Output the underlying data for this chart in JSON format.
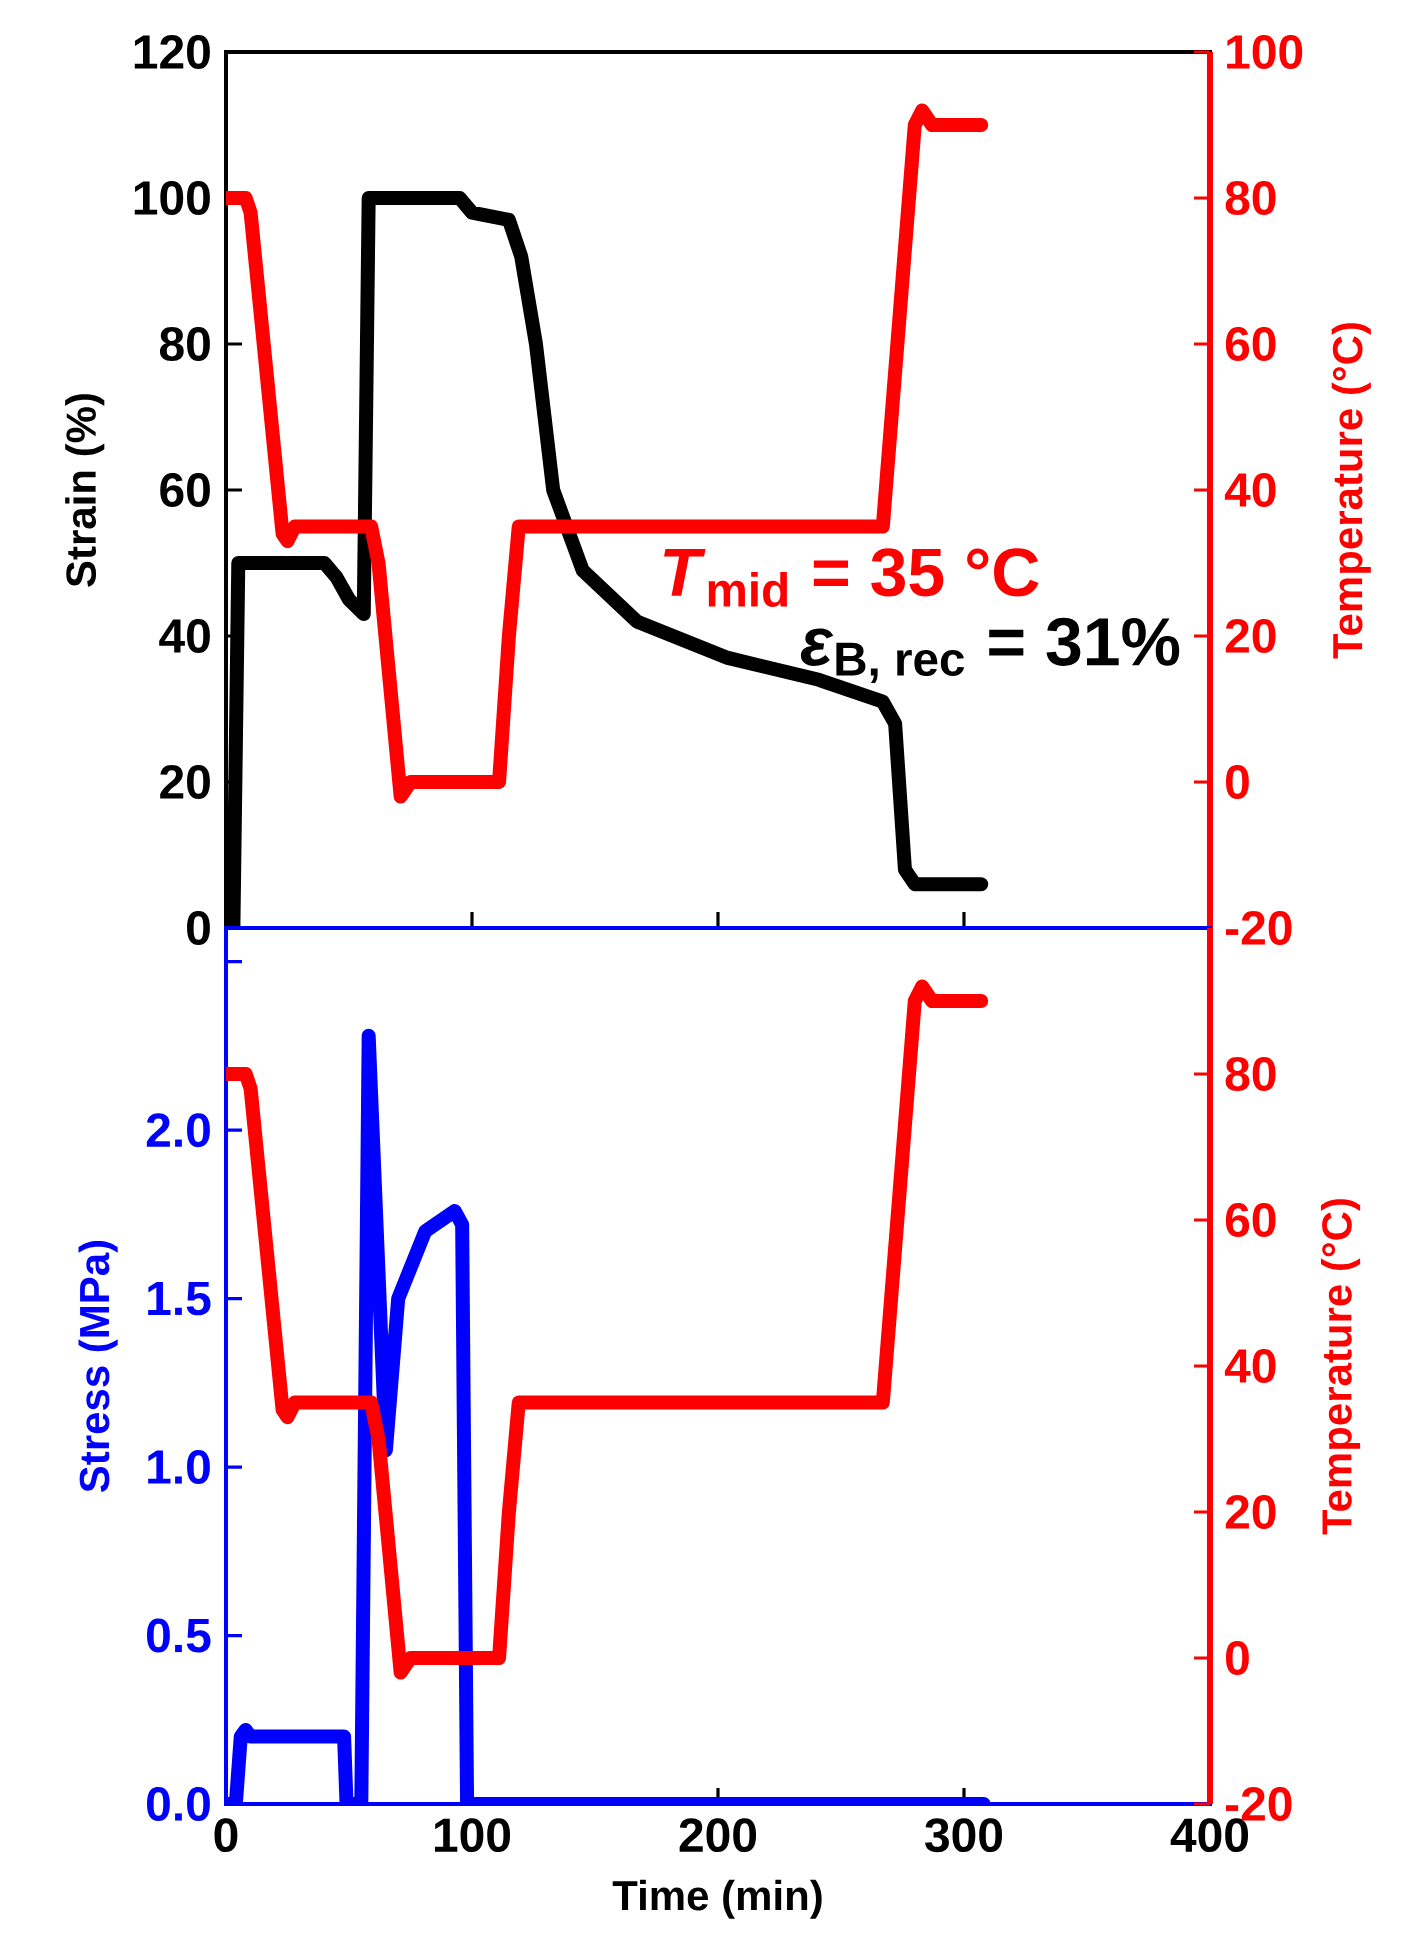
{
  "chart_data": [
    {
      "type": "line",
      "ylabel": "Strain (%)",
      "y2label": "Temperature (°C)",
      "xlim": [
        0,
        400
      ],
      "xticks": [
        0,
        100,
        200,
        300,
        400
      ],
      "ylim": [
        0,
        120
      ],
      "yticks": [
        0,
        20,
        40,
        60,
        80,
        100,
        120
      ],
      "y2lim": [
        -20,
        100
      ],
      "y2ticks": [
        -20,
        0,
        20,
        40,
        60,
        80,
        100
      ],
      "tick_labels": "y",
      "annotations": [
        "*T*$_{mid}$ = 35 °C",
        "\\text{\\textit{ε}}_{\\text{B, rec}}\\text{ = 31\\%}"
      ],
      "series": [
        {
          "color": "#000000",
          "x": [
            0,
            3,
            5,
            10,
            40,
            45,
            50,
            56,
            58,
            60,
            95,
            100,
            115,
            120,
            126,
            133,
            145,
            167,
            204,
            241,
            267,
            272,
            276,
            280,
            307
          ],
          "values": [
            0,
            0,
            50,
            50,
            50,
            48,
            45,
            43,
            100,
            100,
            100,
            98,
            97,
            92,
            80,
            60,
            49,
            42,
            37,
            34,
            31,
            28,
            8,
            6,
            6
          ]
        },
        {
          "axis": "y2",
          "color": "#ff0000",
          "x": [
            0,
            8,
            10,
            23,
            25,
            28,
            59,
            62,
            71,
            75,
            111,
            115,
            119,
            267,
            280,
            283,
            287,
            307
          ],
          "values": [
            80,
            80,
            78,
            34,
            33,
            35,
            35,
            30,
            -2,
            0,
            0,
            20,
            35,
            35,
            90,
            92,
            90,
            90
          ]
        }
      ]
    },
    {
      "type": "line",
      "xlabel": "Time (min)",
      "ylabel": "Stress (MPa)",
      "y2label": "Temperature (°C)",
      "xlim": [
        0,
        400
      ],
      "xticks": [
        0,
        100,
        200,
        300,
        400
      ],
      "ylim": [
        0,
        2.6
      ],
      "yticks": [
        {
          "value": 0,
          "label": "0.0"
        },
        {
          "value": 0.5,
          "label": "0.5"
        },
        {
          "value": 1,
          "label": "1.0"
        },
        {
          "value": 1.5,
          "label": "1.5"
        },
        {
          "value": 2,
          "label": "2.0"
        },
        {
          "value": 2.5,
          "label": null
        }
      ],
      "y2lim": [
        -20,
        100
      ],
      "y2ticks": [
        -20,
        0,
        20,
        40,
        60,
        80
      ],
      "series": [
        {
          "color": "#0000ff",
          "x": [
            0,
            4,
            6,
            8,
            10,
            42,
            48,
            49,
            55,
            58,
            65,
            70,
            81,
            93,
            96,
            98,
            308
          ],
          "values": [
            0,
            0,
            0.2,
            0.22,
            0.2,
            0.2,
            0.2,
            0,
            0,
            2.28,
            1.05,
            1.5,
            1.7,
            1.76,
            1.72,
            0,
            0
          ]
        },
        {
          "axis": "y2",
          "color": "#ff0000",
          "x": [
            0,
            8,
            10,
            23,
            25,
            28,
            59,
            62,
            71,
            75,
            111,
            115,
            119,
            267,
            280,
            283,
            287,
            307
          ],
          "values": [
            80,
            80,
            78,
            34,
            33,
            35,
            35,
            30,
            -2,
            0,
            0,
            20,
            35,
            35,
            90,
            92,
            90,
            90
          ]
        }
      ]
    }
  ]
}
